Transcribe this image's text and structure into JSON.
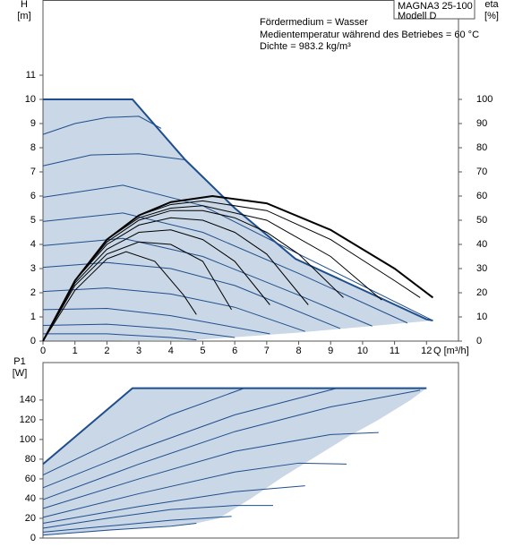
{
  "chart_data": [
    {
      "type": "line",
      "y_label": "H",
      "y_unit": "[m]",
      "y2_label": "eta",
      "y2_unit": "[%]",
      "x_label": "Q [m³/h]",
      "annotations": [
        "Fördermedium = Wasser",
        "Medientemperatur während des Betriebes = 60 °C",
        "Dichte = 983.2 kg/m³"
      ],
      "model": [
        "MAGNA3 25-100",
        "Modell D"
      ],
      "xlim": [
        0,
        13
      ],
      "xticks": [
        0,
        1,
        2,
        3,
        4,
        5,
        6,
        7,
        8,
        9,
        10,
        11,
        12
      ],
      "ylim": [
        0,
        14
      ],
      "yticks": [
        0,
        1,
        2,
        3,
        4,
        5,
        6,
        7,
        8,
        9,
        10,
        11
      ],
      "y2lim": [
        0,
        140
      ],
      "y2ticks": [
        0,
        10,
        20,
        30,
        40,
        50,
        60,
        70,
        80,
        90,
        100
      ],
      "series": [
        {
          "kind": "area",
          "color": "#c9d7e6",
          "x": [
            0,
            0,
            2.8,
            4.45,
            6,
            7.9,
            10.2,
            12,
            12.2,
            8,
            4.8,
            0
          ],
          "values": [
            0,
            10,
            10,
            7.5,
            5.5,
            3.4,
            2,
            0.9,
            0.85,
            0.35,
            0.05,
            0
          ]
        },
        {
          "kind": "line",
          "color": "#1f4e8c",
          "width": 2,
          "x": [
            0,
            2.8,
            4.45,
            6,
            7.9,
            10.2,
            12,
            12.2
          ],
          "values": [
            10,
            10,
            7.5,
            5.5,
            3.4,
            2,
            0.9,
            0.85
          ]
        },
        {
          "kind": "line",
          "color": "#1f4e8c",
          "width": 1,
          "x": [
            0,
            1,
            2,
            3,
            3.7
          ],
          "values": [
            8.55,
            9,
            9.25,
            9.3,
            8.8
          ]
        },
        {
          "kind": "line",
          "color": "#1f4e8c",
          "width": 1,
          "x": [
            0,
            1.5,
            3,
            4.45
          ],
          "values": [
            7.25,
            7.7,
            7.75,
            7.5
          ]
        },
        {
          "kind": "line",
          "color": "#1f4e8c",
          "width": 1,
          "x": [
            0,
            2.5,
            5,
            8,
            12.2
          ],
          "values": [
            5.95,
            6.45,
            5.6,
            3.6,
            0.85
          ]
        },
        {
          "kind": "line",
          "color": "#1f4e8c",
          "width": 1,
          "x": [
            0,
            2.5,
            5,
            8,
            11.4
          ],
          "values": [
            4.95,
            5.3,
            4.5,
            2.8,
            0.75
          ]
        },
        {
          "kind": "line",
          "color": "#1f4e8c",
          "width": 1,
          "x": [
            0,
            2.5,
            5,
            8,
            10.3
          ],
          "values": [
            3.95,
            4.25,
            3.5,
            1.9,
            0.62
          ]
        },
        {
          "kind": "line",
          "color": "#1f4e8c",
          "width": 1,
          "x": [
            0,
            2,
            4,
            6,
            9.3
          ],
          "values": [
            3.05,
            3.25,
            3,
            2.3,
            0.52
          ]
        },
        {
          "kind": "line",
          "color": "#1f4e8c",
          "width": 1,
          "x": [
            0,
            2,
            4,
            6,
            8.2
          ],
          "values": [
            2.05,
            2.2,
            1.95,
            1.4,
            0.4
          ]
        },
        {
          "kind": "line",
          "color": "#1f4e8c",
          "width": 1,
          "x": [
            0,
            2,
            4,
            7.1
          ],
          "values": [
            1.3,
            1.35,
            1.05,
            0.3
          ]
        },
        {
          "kind": "line",
          "color": "#1f4e8c",
          "width": 1,
          "x": [
            0,
            2,
            4,
            6
          ],
          "values": [
            0.65,
            0.7,
            0.5,
            0.15
          ]
        },
        {
          "kind": "line",
          "color": "#1f4e8c",
          "width": 1,
          "x": [
            0,
            2,
            4,
            4.8
          ],
          "values": [
            0.3,
            0.3,
            0.15,
            0.05
          ]
        },
        {
          "kind": "line",
          "axis": "y2",
          "color": "#000000",
          "width": 2,
          "x": [
            0,
            1,
            2,
            3,
            4,
            5.3,
            7,
            9,
            11,
            12.2
          ],
          "values": [
            0,
            25,
            42,
            52,
            57.5,
            60,
            57,
            46,
            30,
            18
          ]
        },
        {
          "kind": "line",
          "axis": "y2",
          "color": "#000000",
          "width": 1,
          "x": [
            0,
            1,
            2,
            3,
            4,
            5,
            7,
            9,
            11,
            11.8
          ],
          "values": [
            0,
            25,
            42,
            52,
            56.5,
            58,
            54,
            42,
            25,
            18
          ]
        },
        {
          "kind": "line",
          "axis": "y2",
          "color": "#000000",
          "width": 1,
          "x": [
            0,
            1,
            2,
            3,
            4,
            5,
            7,
            9,
            10.6
          ],
          "values": [
            0,
            25,
            42,
            51,
            55,
            56,
            50,
            35,
            17
          ]
        },
        {
          "kind": "line",
          "axis": "y2",
          "color": "#000000",
          "width": 1,
          "x": [
            0,
            1,
            2,
            3,
            4,
            5,
            6,
            7,
            8,
            9.4
          ],
          "values": [
            0,
            25,
            41,
            50,
            54,
            54,
            51,
            45,
            36,
            18
          ]
        },
        {
          "kind": "line",
          "axis": "y2",
          "color": "#000000",
          "width": 1,
          "x": [
            0,
            1,
            2,
            3,
            4,
            5,
            6,
            7,
            8.3
          ],
          "values": [
            0,
            25,
            40,
            48,
            51,
            50,
            45,
            36,
            15
          ]
        },
        {
          "kind": "line",
          "axis": "y2",
          "color": "#000000",
          "width": 1,
          "x": [
            0,
            1,
            2,
            3,
            4,
            5,
            6,
            7.1
          ],
          "values": [
            0,
            24,
            38,
            45,
            46,
            42,
            33,
            15
          ]
        },
        {
          "kind": "line",
          "axis": "y2",
          "color": "#000000",
          "width": 1,
          "x": [
            0,
            1,
            2,
            3,
            4,
            5,
            5.9
          ],
          "values": [
            0,
            23,
            36,
            41,
            40,
            33,
            13
          ]
        },
        {
          "kind": "line",
          "axis": "y2",
          "color": "#000000",
          "width": 1,
          "x": [
            0,
            1,
            2,
            2.6,
            3.5,
            4.4,
            4.8
          ],
          "values": [
            0,
            21,
            34,
            37,
            33,
            19,
            11
          ]
        }
      ]
    },
    {
      "type": "line",
      "y_label": "P1",
      "y_unit": "[W]",
      "xlim": [
        0,
        13
      ],
      "ylim": [
        0,
        178
      ],
      "yticks": [
        0,
        20,
        40,
        60,
        80,
        100,
        120,
        140
      ],
      "series": [
        {
          "kind": "area",
          "color": "#c9d7e6",
          "x": [
            0,
            0,
            2.8,
            12,
            11.5,
            10.5,
            9.5,
            8.5,
            7.5,
            6.5,
            5.5,
            4.8,
            3,
            1.5,
            0
          ],
          "values": [
            3,
            75,
            152,
            152,
            140,
            120,
            102,
            82,
            62,
            40,
            20,
            15,
            10,
            6,
            3
          ]
        },
        {
          "kind": "line",
          "color": "#1f4e8c",
          "width": 2,
          "x": [
            0,
            2.8,
            12
          ],
          "values": [
            75,
            152,
            152
          ]
        },
        {
          "kind": "line",
          "color": "#1f4e8c",
          "width": 1,
          "x": [
            0,
            2,
            4,
            6.3
          ],
          "values": [
            64,
            95,
            125,
            152
          ]
        },
        {
          "kind": "line",
          "color": "#1f4e8c",
          "width": 1,
          "x": [
            0,
            3,
            6,
            9.2
          ],
          "values": [
            51,
            90,
            125,
            152
          ]
        },
        {
          "kind": "line",
          "color": "#1f4e8c",
          "width": 1,
          "x": [
            0,
            3,
            6,
            9,
            11.8
          ],
          "values": [
            39,
            75,
            108,
            133,
            150
          ]
        },
        {
          "kind": "line",
          "color": "#1f4e8c",
          "width": 1,
          "x": [
            0,
            3,
            6,
            9,
            10.5
          ],
          "values": [
            30,
            60,
            88,
            105,
            107
          ]
        },
        {
          "kind": "line",
          "color": "#1f4e8c",
          "width": 1,
          "x": [
            0,
            3,
            6,
            8,
            9.5
          ],
          "values": [
            21,
            45,
            67,
            76,
            75
          ]
        },
        {
          "kind": "line",
          "color": "#1f4e8c",
          "width": 1,
          "x": [
            0,
            3,
            6,
            8.2
          ],
          "values": [
            15,
            32,
            47,
            53
          ]
        },
        {
          "kind": "line",
          "color": "#1f4e8c",
          "width": 1,
          "x": [
            0,
            2,
            4,
            6,
            7.2
          ],
          "values": [
            10,
            20,
            29,
            33,
            33
          ]
        },
        {
          "kind": "line",
          "color": "#1f4e8c",
          "width": 1,
          "x": [
            0,
            2,
            4,
            5.9
          ],
          "values": [
            6,
            12,
            18,
            22
          ]
        },
        {
          "kind": "line",
          "color": "#1f4e8c",
          "width": 1,
          "x": [
            0,
            2,
            4,
            4.8
          ],
          "values": [
            3,
            8,
            12,
            15
          ]
        }
      ]
    }
  ]
}
